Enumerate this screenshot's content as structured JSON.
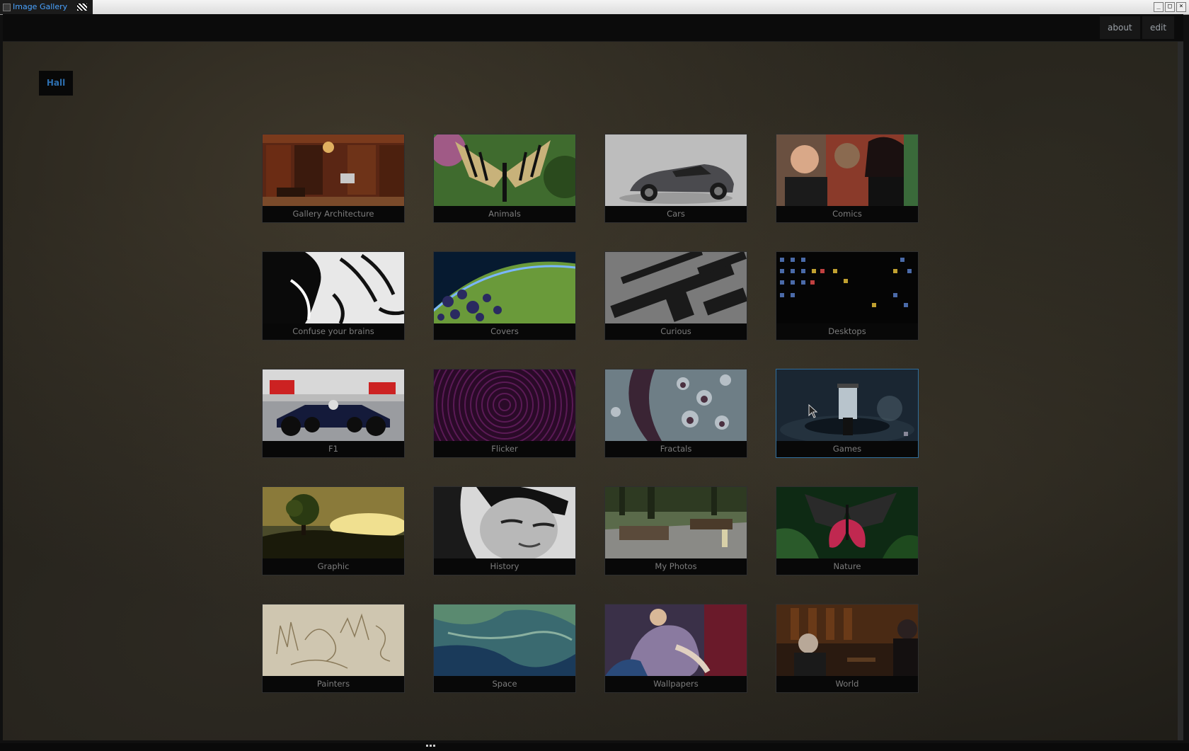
{
  "window": {
    "title": "Image Gallery"
  },
  "titlebar_buttons": {
    "minimize": "_",
    "maximize": "□",
    "close": "×"
  },
  "nav": {
    "about": "about",
    "edit": "edit"
  },
  "breadcrumb": {
    "label": "Hall"
  },
  "colors": {
    "accent": "#2d6fb0",
    "active_border": "#2f6e9e",
    "label_text": "#7d7d7d",
    "background": "#1e1c17"
  },
  "albums": [
    {
      "label": "Gallery Architecture",
      "thumb": "wood-paneled-hall-with-chandelier"
    },
    {
      "label": "Animals",
      "thumb": "swallowtail-butterfly"
    },
    {
      "label": "Cars",
      "thumb": "grey-sports-car"
    },
    {
      "label": "Comics",
      "thumb": "comic-characters"
    },
    {
      "label": "Confuse your brains",
      "thumb": "black-white-illusion"
    },
    {
      "label": "Covers",
      "thumb": "earth-horizon-from-space"
    },
    {
      "label": "Curious",
      "thumb": "rifles-on-table"
    },
    {
      "label": "Desktops",
      "thumb": "dark-desktop-icons"
    },
    {
      "label": "F1",
      "thumb": "formula-one-car"
    },
    {
      "label": "Flicker",
      "thumb": "purple-concentric-pattern"
    },
    {
      "label": "Fractals",
      "thumb": "fractal-pattern"
    },
    {
      "label": "Games",
      "thumb": "sci-fi-chamber",
      "active": true
    },
    {
      "label": "Graphic",
      "thumb": "tree-at-sunset"
    },
    {
      "label": "History",
      "thumb": "black-white-portrait"
    },
    {
      "label": "My Photos",
      "thumb": "construction-site"
    },
    {
      "label": "Nature",
      "thumb": "red-black-butterfly"
    },
    {
      "label": "Painters",
      "thumb": "pencil-sketch"
    },
    {
      "label": "Space",
      "thumb": "teal-terrain"
    },
    {
      "label": "Wallpapers",
      "thumb": "painted-figures"
    },
    {
      "label": "World",
      "thumb": "dim-interior-scene"
    }
  ]
}
